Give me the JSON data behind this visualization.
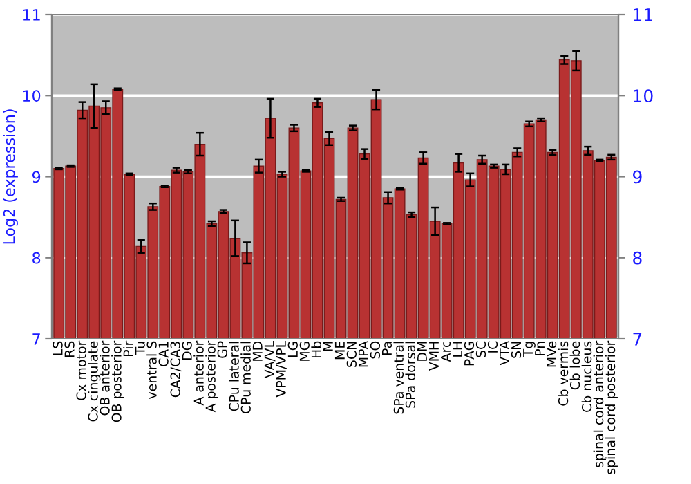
{
  "chart_data": {
    "type": "bar",
    "ylabel": "Log2 (expression)",
    "categories": [
      "LS",
      "RS",
      "Cx motor",
      "Cx cingulate",
      "OB anterior",
      "OB posterior",
      "Pir",
      "Tu",
      "ventral S",
      "CA1",
      "CA2/CA3",
      "DG",
      "A anterior",
      "A posterior",
      "GP",
      "CPu lateral",
      "CPu medial",
      "MD",
      "VA/VL",
      "VPM/VPL",
      "LG",
      "MG",
      "Hb",
      "M",
      "ME",
      "SCN",
      "MPA",
      "SO",
      "Pa",
      "SPa ventral",
      "SPa dorsal",
      "DM",
      "VMH",
      "Arc",
      "LH",
      "PAG",
      "SC",
      "IC",
      "VTA",
      "SN",
      "Tg",
      "Pn",
      "MVe",
      "Cb vermis",
      "Cb lobe",
      "Cb nucleus",
      "spinal cord anterior",
      "spinal cord posterior"
    ],
    "values": [
      9.1,
      9.13,
      9.82,
      9.87,
      9.85,
      10.08,
      9.03,
      8.14,
      8.63,
      8.88,
      9.08,
      9.06,
      9.4,
      8.42,
      8.57,
      8.24,
      8.06,
      9.13,
      9.72,
      9.03,
      9.6,
      9.07,
      9.91,
      9.47,
      8.72,
      9.6,
      9.28,
      9.95,
      8.74,
      8.85,
      8.53,
      9.23,
      8.45,
      8.42,
      9.17,
      8.96,
      9.21,
      9.13,
      9.09,
      9.3,
      9.65,
      9.7,
      9.3,
      10.44,
      10.43,
      9.32,
      9.2,
      9.24
    ],
    "errors": [
      0.01,
      0.01,
      0.1,
      0.27,
      0.08,
      0.01,
      0.01,
      0.08,
      0.04,
      0.01,
      0.03,
      0.02,
      0.14,
      0.03,
      0.02,
      0.22,
      0.13,
      0.08,
      0.24,
      0.03,
      0.04,
      0.01,
      0.05,
      0.08,
      0.02,
      0.03,
      0.06,
      0.12,
      0.07,
      0.01,
      0.03,
      0.07,
      0.17,
      0.01,
      0.11,
      0.08,
      0.05,
      0.02,
      0.06,
      0.05,
      0.03,
      0.02,
      0.03,
      0.05,
      0.12,
      0.05,
      0.01,
      0.03
    ],
    "color": "#b83232",
    "ylim": [
      7,
      11
    ],
    "yticks": [
      7,
      8,
      9,
      10,
      11
    ],
    "y2lim": [
      7,
      11
    ],
    "y2ticks": [
      7,
      8,
      9,
      10,
      11
    ],
    "grid": "y"
  }
}
